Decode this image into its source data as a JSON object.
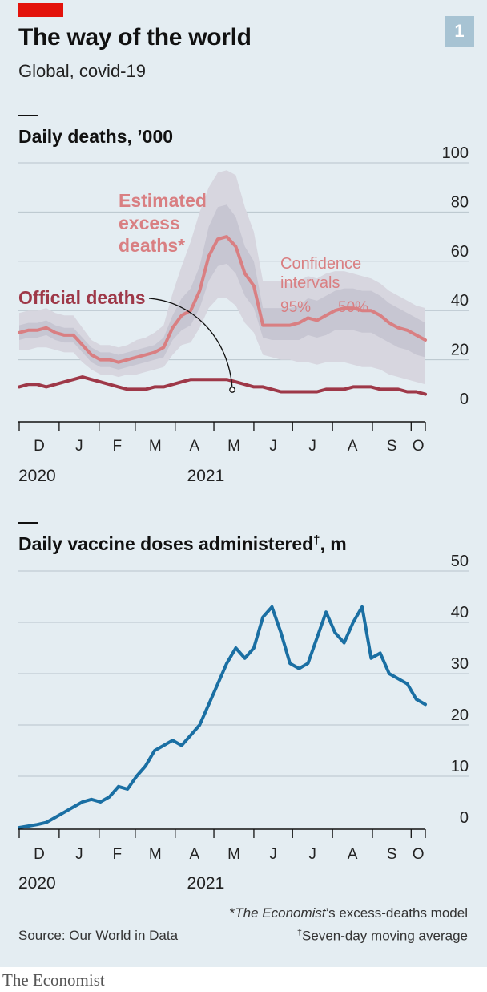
{
  "header": {
    "title": "The way of the world",
    "subtitle": "Global, covid-19",
    "figure_number": "1"
  },
  "colors": {
    "background": "#e4edf2",
    "brand_red": "#e3120b",
    "excess_line": "#d97f82",
    "official_line": "#9e3848",
    "ci95_band": "#d7d6df",
    "ci50_band": "#c7c6d2",
    "vaccine_line": "#1a6fa3",
    "gridline": "#b8c4cc"
  },
  "footer": {
    "source": "Source: Our World in Data",
    "footnote_model_prefix": "*",
    "footnote_model_italic": "The Economist",
    "footnote_model_rest": "’s excess-deaths model",
    "footnote_avg_marker": "†",
    "footnote_avg_text": "Seven-day moving average",
    "publisher": "The Economist"
  },
  "chart_data": [
    {
      "type": "line",
      "title": "Daily deaths, ’000",
      "ylim": [
        0,
        100
      ],
      "yticks": [
        0,
        20,
        40,
        60,
        80,
        100
      ],
      "grid": true,
      "x_tick_labels": [
        "D",
        "J",
        "F",
        "M",
        "A",
        "M",
        "J",
        "J",
        "A",
        "S",
        "O"
      ],
      "year_labels": [
        "2020",
        "2021"
      ],
      "annotations": {
        "excess": [
          "Estimated",
          "excess",
          "deaths*"
        ],
        "official": "Official deaths",
        "ci": [
          "Confidence",
          "intervals"
        ],
        "ci95": "95%",
        "ci50": "50%"
      },
      "x": [
        "2020-12-01",
        "2020-12-08",
        "2020-12-15",
        "2020-12-22",
        "2020-12-29",
        "2021-01-05",
        "2021-01-12",
        "2021-01-19",
        "2021-01-26",
        "2021-02-02",
        "2021-02-09",
        "2021-02-16",
        "2021-02-23",
        "2021-03-02",
        "2021-03-09",
        "2021-03-16",
        "2021-03-23",
        "2021-03-30",
        "2021-04-06",
        "2021-04-13",
        "2021-04-20",
        "2021-04-27",
        "2021-05-04",
        "2021-05-11",
        "2021-05-18",
        "2021-05-25",
        "2021-06-01",
        "2021-06-08",
        "2021-06-15",
        "2021-06-22",
        "2021-06-29",
        "2021-07-06",
        "2021-07-13",
        "2021-07-20",
        "2021-07-27",
        "2021-08-03",
        "2021-08-10",
        "2021-08-17",
        "2021-08-24",
        "2021-08-31",
        "2021-09-07",
        "2021-09-14",
        "2021-09-21",
        "2021-09-28",
        "2021-10-05",
        "2021-10-12"
      ],
      "series": [
        {
          "name": "Estimated excess deaths",
          "values": [
            31,
            32,
            32,
            33,
            31,
            30,
            30,
            26,
            22,
            20,
            20,
            19,
            20,
            21,
            22,
            23,
            25,
            33,
            38,
            40,
            48,
            62,
            69,
            70,
            66,
            55,
            50,
            34,
            34,
            34,
            34,
            35,
            37,
            36,
            38,
            40,
            41,
            41,
            40,
            40,
            38,
            35,
            33,
            32,
            30,
            28
          ]
        },
        {
          "name": "Official deaths",
          "values": [
            9,
            10,
            10,
            9,
            10,
            11,
            12,
            13,
            12,
            11,
            10,
            9,
            8,
            8,
            8,
            9,
            9,
            10,
            11,
            12,
            12,
            12,
            12,
            12,
            11,
            10,
            9,
            9,
            8,
            7,
            7,
            7,
            7,
            7,
            8,
            8,
            8,
            9,
            9,
            9,
            8,
            8,
            8,
            7,
            7,
            6
          ]
        }
      ],
      "confidence_intervals": {
        "ci95_low": [
          24,
          24,
          25,
          25,
          24,
          23,
          23,
          19,
          16,
          14,
          14,
          13,
          14,
          14,
          15,
          16,
          17,
          22,
          26,
          27,
          33,
          41,
          45,
          45,
          42,
          35,
          31,
          22,
          21,
          20,
          20,
          19,
          19,
          18,
          19,
          19,
          19,
          18,
          17,
          17,
          16,
          14,
          13,
          12,
          11,
          10
        ],
        "ci95_high": [
          39,
          40,
          40,
          41,
          39,
          38,
          38,
          33,
          28,
          26,
          26,
          25,
          26,
          28,
          29,
          31,
          34,
          47,
          58,
          68,
          80,
          90,
          96,
          97,
          95,
          82,
          72,
          52,
          52,
          52,
          51,
          52,
          54,
          53,
          55,
          56,
          56,
          55,
          54,
          53,
          51,
          48,
          46,
          44,
          42,
          41
        ],
        "ci50_low": [
          28,
          29,
          29,
          30,
          28,
          27,
          27,
          23,
          19,
          17,
          17,
          16,
          17,
          18,
          19,
          20,
          21,
          28,
          32,
          34,
          41,
          52,
          58,
          59,
          55,
          46,
          41,
          29,
          28,
          28,
          28,
          28,
          30,
          29,
          30,
          32,
          32,
          32,
          31,
          31,
          29,
          27,
          25,
          24,
          22,
          21
        ],
        "ci50_high": [
          34,
          35,
          35,
          36,
          34,
          33,
          33,
          29,
          25,
          23,
          23,
          22,
          23,
          24,
          25,
          26,
          29,
          38,
          45,
          49,
          58,
          74,
          82,
          83,
          78,
          66,
          60,
          41,
          41,
          41,
          41,
          42,
          45,
          44,
          46,
          48,
          49,
          49,
          48,
          48,
          46,
          43,
          41,
          39,
          37,
          35
        ]
      }
    },
    {
      "type": "line",
      "title": "Daily vaccine doses administered",
      "title_marker": "†",
      "title_unit": ", m",
      "ylim": [
        0,
        50
      ],
      "yticks": [
        0,
        10,
        20,
        30,
        40,
        50
      ],
      "grid": true,
      "x_tick_labels": [
        "D",
        "J",
        "F",
        "M",
        "A",
        "M",
        "J",
        "J",
        "A",
        "S",
        "O"
      ],
      "year_labels": [
        "2020",
        "2021"
      ],
      "x": [
        "2020-12-01",
        "2020-12-08",
        "2020-12-15",
        "2020-12-22",
        "2020-12-29",
        "2021-01-05",
        "2021-01-12",
        "2021-01-19",
        "2021-01-26",
        "2021-02-02",
        "2021-02-09",
        "2021-02-16",
        "2021-02-23",
        "2021-03-02",
        "2021-03-09",
        "2021-03-16",
        "2021-03-23",
        "2021-03-30",
        "2021-04-06",
        "2021-04-13",
        "2021-04-20",
        "2021-04-27",
        "2021-05-04",
        "2021-05-11",
        "2021-05-18",
        "2021-05-25",
        "2021-06-01",
        "2021-06-08",
        "2021-06-15",
        "2021-06-22",
        "2021-06-29",
        "2021-07-06",
        "2021-07-13",
        "2021-07-20",
        "2021-07-27",
        "2021-08-03",
        "2021-08-10",
        "2021-08-17",
        "2021-08-24",
        "2021-08-31",
        "2021-09-07",
        "2021-09-14",
        "2021-09-21",
        "2021-09-28",
        "2021-10-05",
        "2021-10-12"
      ],
      "series": [
        {
          "name": "Daily vaccine doses",
          "values": [
            0,
            0.3,
            0.6,
            1,
            2,
            3,
            4,
            5,
            5.5,
            5,
            6,
            8,
            7.5,
            10,
            12,
            15,
            16,
            17,
            16,
            18,
            20,
            24,
            28,
            32,
            35,
            33,
            35,
            41,
            43,
            38,
            32,
            31,
            32,
            37,
            42,
            38,
            36,
            40,
            43,
            33,
            34,
            30,
            29,
            28,
            25,
            24
          ]
        }
      ]
    }
  ]
}
